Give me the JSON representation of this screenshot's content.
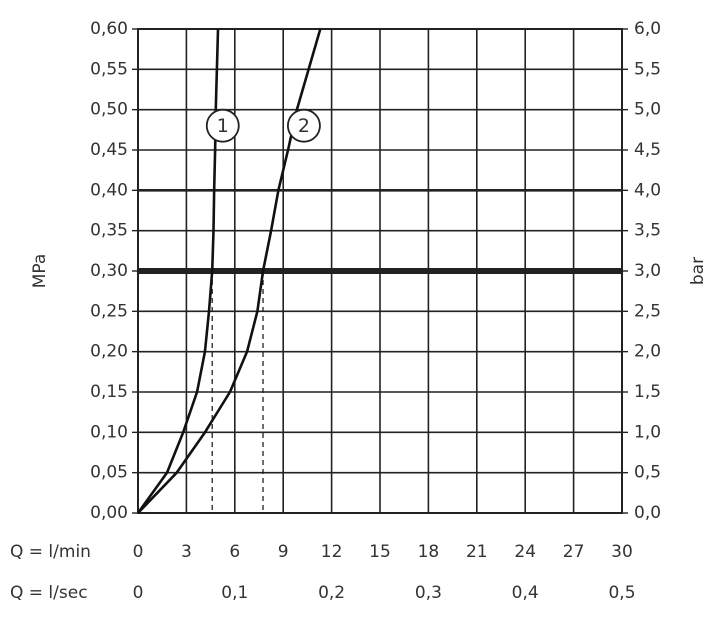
{
  "chart_data": {
    "type": "line",
    "ylabel": "MPa",
    "y2label": "bar",
    "xlabel": "Q = l/min",
    "x2label": "Q = l/sec",
    "xlim": [
      0,
      30
    ],
    "xticks": [
      0,
      3,
      6,
      9,
      12,
      15,
      18,
      21,
      24,
      27,
      30
    ],
    "x2lim": [
      0,
      0.5
    ],
    "x2ticks": [
      0,
      {
        "value": 0.1,
        "label": "0,1"
      },
      {
        "value": 0.2,
        "label": "0,2"
      },
      {
        "value": 0.3,
        "label": "0,3"
      },
      {
        "value": 0.4,
        "label": "0,4"
      },
      {
        "value": 0.5,
        "label": "0,5"
      }
    ],
    "ylim": [
      0,
      0.6
    ],
    "yticks": [
      {
        "value": 0,
        "label": "0,00"
      },
      {
        "value": 0.05,
        "label": "0,05"
      },
      {
        "value": 0.1,
        "label": "0,10"
      },
      {
        "value": 0.15,
        "label": "0,15"
      },
      {
        "value": 0.2,
        "label": "0,20"
      },
      {
        "value": 0.25,
        "label": "0,25"
      },
      {
        "value": 0.3,
        "label": "0,30"
      },
      {
        "value": 0.35,
        "label": "0,35"
      },
      {
        "value": 0.4,
        "label": "0,40"
      },
      {
        "value": 0.45,
        "label": "0,45"
      },
      {
        "value": 0.5,
        "label": "0,50"
      },
      {
        "value": 0.55,
        "label": "0,55"
      },
      {
        "value": 0.6,
        "label": "0,60"
      }
    ],
    "y2lim": [
      0,
      6
    ],
    "y2ticks": [
      {
        "value": 0,
        "label": "0,0"
      },
      {
        "value": 0.5,
        "label": "0,5"
      },
      {
        "value": 1,
        "label": "1,0"
      },
      {
        "value": 1.5,
        "label": "1,5"
      },
      {
        "value": 2,
        "label": "2,0"
      },
      {
        "value": 2.5,
        "label": "2,5"
      },
      {
        "value": 3,
        "label": "3,0"
      },
      {
        "value": 3.5,
        "label": "3,5"
      },
      {
        "value": 4,
        "label": "4,0"
      },
      {
        "value": 4.5,
        "label": "4,5"
      },
      {
        "value": 5,
        "label": "5,0"
      },
      {
        "value": 5.5,
        "label": "5,5"
      },
      {
        "value": 6,
        "label": "6,0"
      }
    ],
    "grid": true,
    "emphasis_y": {
      "strong": 0.3,
      "medium": 0.4
    },
    "series": [
      {
        "name": "1",
        "color": "#111111",
        "x": [
          0,
          1.8,
          2.8,
          3.66,
          4.15,
          4.4,
          4.6,
          4.68,
          4.72,
          4.78,
          4.82,
          4.96
        ],
        "values": [
          0,
          0.05,
          0.1,
          0.15,
          0.2,
          0.25,
          0.3,
          0.35,
          0.4,
          0.45,
          0.5,
          0.6
        ]
      },
      {
        "name": "2",
        "color": "#111111",
        "x": [
          0,
          2.4,
          4.15,
          5.7,
          6.76,
          7.4,
          7.75,
          8.25,
          8.7,
          9.3,
          9.85,
          11.3
        ],
        "values": [
          0,
          0.05,
          0.1,
          0.15,
          0.2,
          0.25,
          0.3,
          0.35,
          0.4,
          0.45,
          0.5,
          0.6
        ]
      }
    ],
    "reference_lines": [
      {
        "x": 4.6,
        "y": 0.3
      },
      {
        "x": 7.75,
        "y": 0.3
      }
    ]
  }
}
